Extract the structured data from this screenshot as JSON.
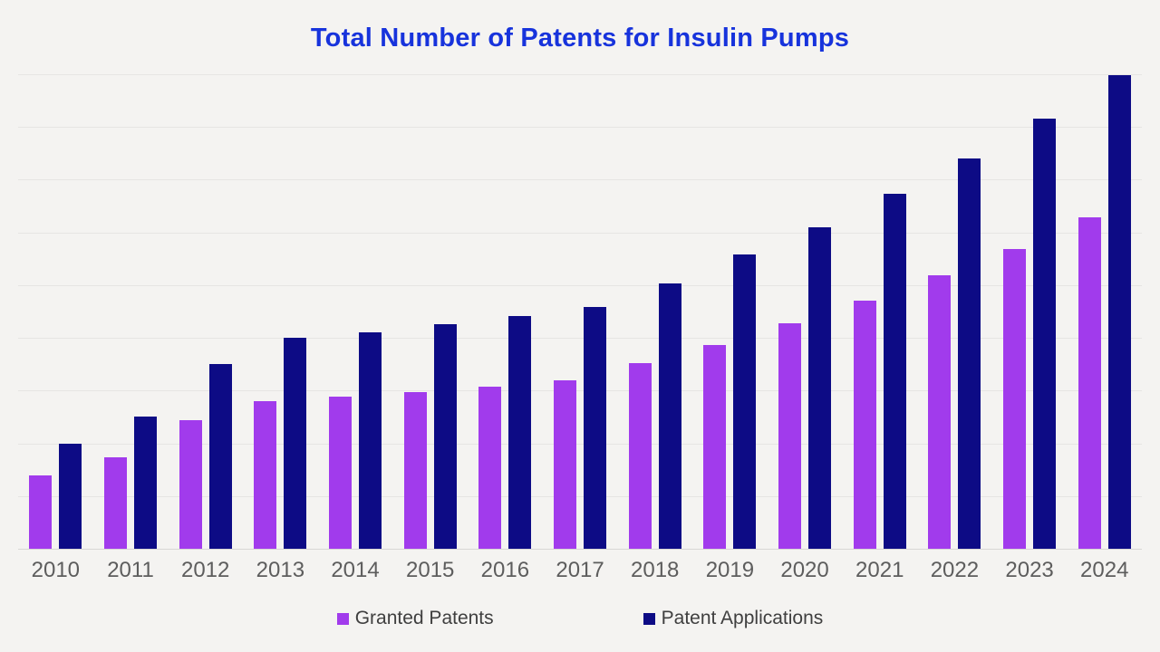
{
  "page": {
    "background": "#F4F3F1"
  },
  "chart": {
    "title": "Total Number of Patents for Insulin Pumps",
    "title_color": "#1733DC",
    "axis_label_color": "#5D5D5D",
    "legend_text_color": "#3F3F3F",
    "grid_color": "#E6E5E3",
    "baseline_color": "#D8D7D5"
  },
  "chart_data": {
    "type": "bar",
    "title": "Total Number of Patents for Insulin Pumps",
    "categories": [
      "2010",
      "2011",
      "2012",
      "2013",
      "2014",
      "2015",
      "2016",
      "2017",
      "2018",
      "2019",
      "2020",
      "2021",
      "2022",
      "2023",
      "2024"
    ],
    "series": [
      {
        "name": "Granted Patents",
        "color": "#A13BEC",
        "values": [
          70,
          87,
          122,
          140,
          144,
          149,
          154,
          160,
          176,
          193,
          214,
          235,
          259,
          284,
          314
        ]
      },
      {
        "name": "Patent Applications",
        "color": "#0D0B85",
        "values": [
          100,
          125,
          175,
          200,
          205,
          213,
          221,
          229,
          252,
          279,
          305,
          337,
          370,
          408,
          449
        ]
      }
    ],
    "xlabel": "",
    "ylabel": "",
    "ylim": [
      0,
      450
    ],
    "gridline_step": 50,
    "grid": true,
    "y_tick_labels_visible": false,
    "legend_position": "bottom"
  }
}
